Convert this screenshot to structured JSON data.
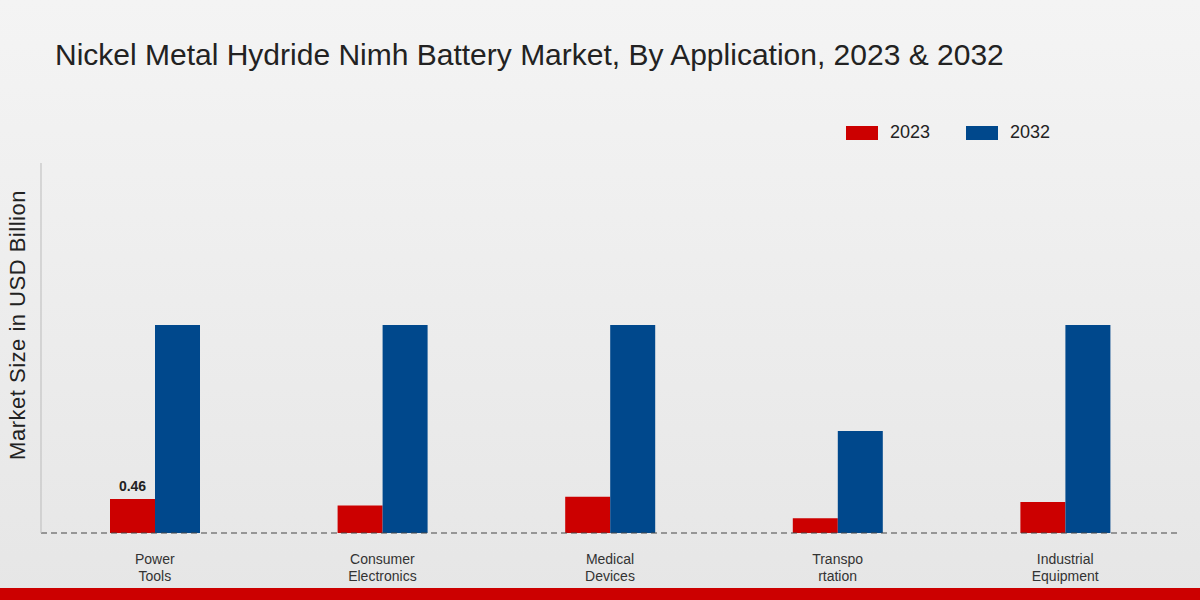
{
  "chart_data": {
    "type": "bar",
    "title": "Nickel Metal Hydride Nimh Battery Market, By Application, 2023 & 2032",
    "y_label": "Market Size in USD Billion",
    "categories": [
      "Power\nTools",
      "Consumer\nElectronics",
      "Medical\nDevices",
      "Transpo\nrtation",
      "Industrial\nEquipment"
    ],
    "series": [
      {
        "name": "2023",
        "color": "#cc0000",
        "values": [
          0.46,
          0.37,
          0.49,
          0.2,
          0.42
        ],
        "value_labels": [
          "0.46",
          null,
          null,
          null,
          null
        ]
      },
      {
        "name": "2032",
        "color": "#00488c",
        "values": [
          2.81,
          2.81,
          2.81,
          1.38,
          2.81
        ]
      }
    ],
    "ylim": [
      0,
      5
    ],
    "grid": false,
    "legend": "top right",
    "tick_labels": "x"
  }
}
